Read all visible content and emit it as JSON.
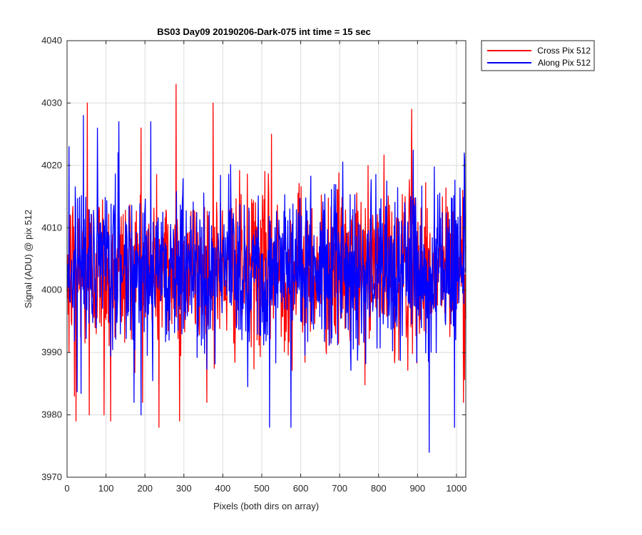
{
  "chart_data": {
    "type": "line",
    "title": "BS03 Day09 20190206-Dark-075 int time = 15 sec",
    "xlabel": "Pixels (both dirs on array)",
    "ylabel": "Signal (ADU) @ pix 512",
    "xlim": [
      0,
      1024
    ],
    "ylim": [
      3970,
      4040
    ],
    "xticks": [
      0,
      100,
      200,
      300,
      400,
      500,
      600,
      700,
      800,
      900,
      1000
    ],
    "yticks": [
      3970,
      3980,
      3990,
      4000,
      4010,
      4020,
      4030,
      4040
    ],
    "grid": true,
    "legend_position": "outside-top-right",
    "noise": {
      "mean": 4003.5,
      "std": 6.5
    },
    "series": [
      {
        "name": "Cross Pix 512",
        "color": "#ff0000",
        "peaks": [
          [
            0,
            4000
          ],
          [
            5,
            3990
          ],
          [
            19,
            3983
          ],
          [
            23,
            3979
          ],
          [
            52,
            4030
          ],
          [
            57,
            3980
          ],
          [
            95,
            3980
          ],
          [
            112,
            3979
          ],
          [
            190,
            4026
          ],
          [
            236,
            3978
          ],
          [
            280,
            4033
          ],
          [
            289,
            3979
          ],
          [
            375,
            4030
          ],
          [
            525,
            4025
          ],
          [
            868,
            4015
          ],
          [
            885,
            4029
          ],
          [
            1018,
            3982
          ]
        ]
      },
      {
        "name": "Along Pix 512",
        "color": "#0000ff",
        "peaks": [
          [
            0,
            4000
          ],
          [
            5,
            4023
          ],
          [
            42,
            4028
          ],
          [
            133,
            4027
          ],
          [
            190,
            3980
          ],
          [
            215,
            4027
          ],
          [
            520,
            3978
          ],
          [
            575,
            3978
          ],
          [
            930,
            3974
          ],
          [
            995,
            3978
          ],
          [
            1020,
            4022
          ]
        ]
      }
    ]
  }
}
